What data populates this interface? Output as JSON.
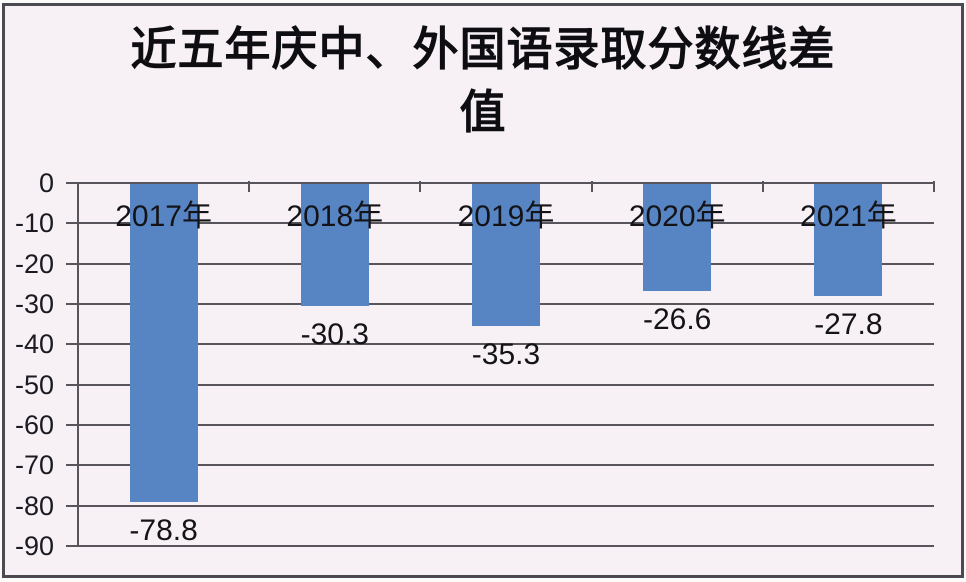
{
  "chart_data": {
    "type": "bar",
    "title": "近五年庆中、外国语录取分数线差值",
    "title_lines": [
      "近五年庆中、外国语录取分数线差",
      "值"
    ],
    "categories": [
      "2017年",
      "2018年",
      "2019年",
      "2020年",
      "2021年"
    ],
    "values": [
      -78.8,
      -30.3,
      -35.3,
      -26.6,
      -27.8
    ],
    "data_labels": [
      "-78.8",
      "-30.3",
      "-35.3",
      "-26.6",
      "-27.8"
    ],
    "ylim": [
      -90,
      0
    ],
    "yticks": [
      0,
      -10,
      -20,
      -30,
      -40,
      -50,
      -60,
      -70,
      -80,
      -90
    ],
    "ytick_labels": [
      "0",
      "-10",
      "-20",
      "-30",
      "-40",
      "-50",
      "-60",
      "-70",
      "-80",
      "-90"
    ],
    "grid": true,
    "legend": "none",
    "bar_color": "#5785c4",
    "gridline_color": "#57545c",
    "background_color": "#f7f1f5",
    "frame_border_color": "#4b4a51",
    "text_color": "#141318"
  }
}
